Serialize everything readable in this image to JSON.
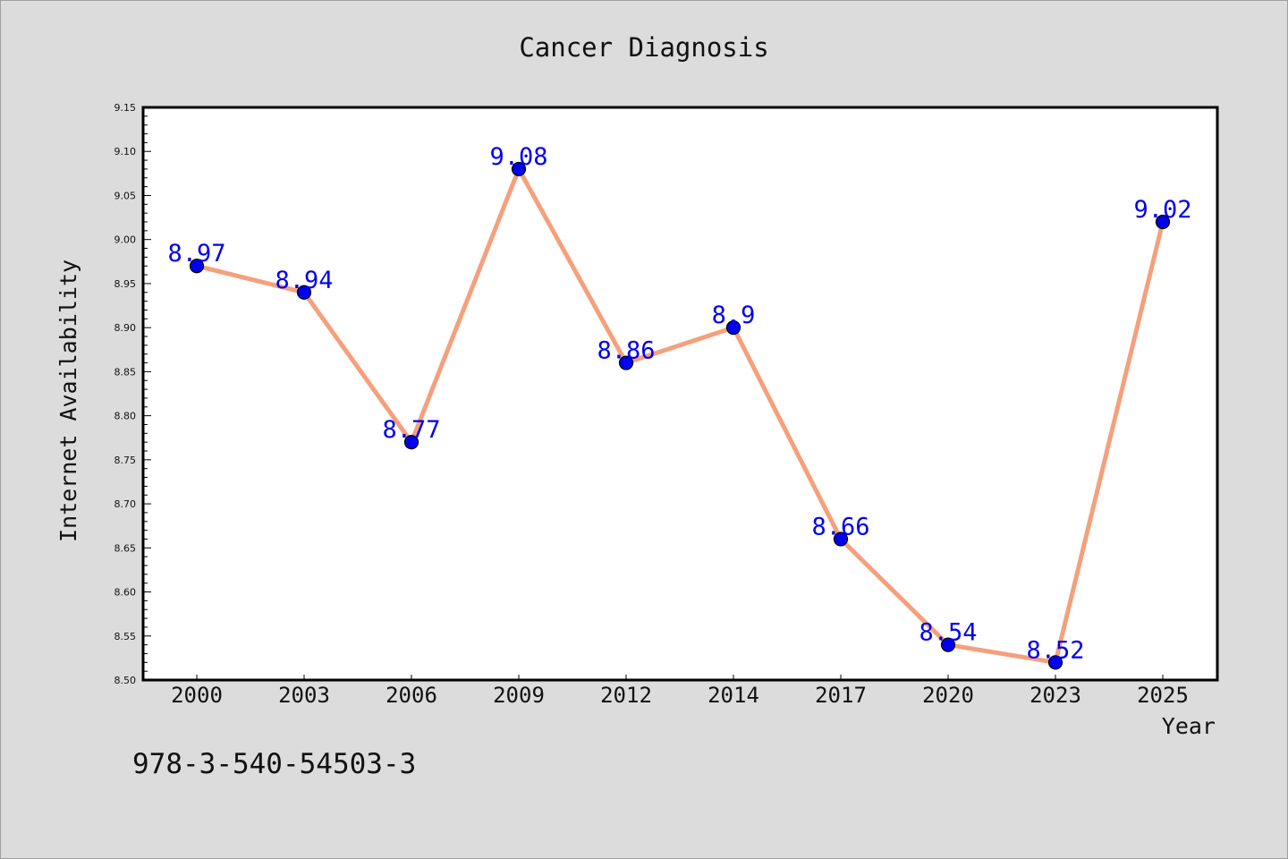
{
  "chart_data": {
    "type": "line",
    "title": "Cancer Diagnosis",
    "xlabel": "Year",
    "ylabel": "Internet Availability",
    "categories": [
      "2000",
      "2003",
      "2006",
      "2009",
      "2012",
      "2014",
      "2017",
      "2020",
      "2023",
      "2025"
    ],
    "series": [
      {
        "values": [
          8.97,
          8.94,
          8.77,
          9.08,
          8.86,
          8.9,
          8.66,
          8.54,
          8.52,
          9.02
        ]
      }
    ],
    "data_labels": [
      "8.97",
      "8.94",
      "8.77",
      "9.08",
      "8.86",
      "8.9",
      "8.66",
      "8.54",
      "8.52",
      "9.02"
    ],
    "ylim": [
      8.5,
      9.15
    ],
    "yticks": [
      "8.50",
      "8.55",
      "8.60",
      "8.65",
      "8.70",
      "8.75",
      "8.80",
      "8.85",
      "8.90",
      "8.95",
      "9.00",
      "9.05",
      "9.10",
      "9.15"
    ],
    "line_color": "#f5a07c",
    "marker_color": "#0000ee",
    "label_color": "#0000ee",
    "grid": false
  },
  "annotation": "978-3-540-54503-3"
}
